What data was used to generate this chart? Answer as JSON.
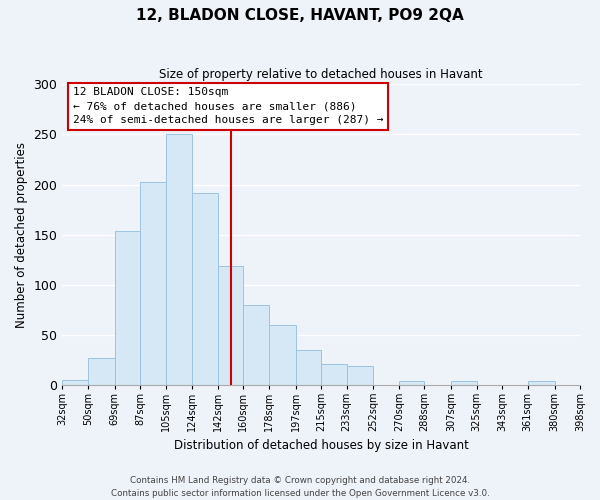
{
  "title": "12, BLADON CLOSE, HAVANT, PO9 2QA",
  "subtitle": "Size of property relative to detached houses in Havant",
  "xlabel": "Distribution of detached houses by size in Havant",
  "ylabel": "Number of detached properties",
  "footer_lines": [
    "Contains HM Land Registry data © Crown copyright and database right 2024.",
    "Contains public sector information licensed under the Open Government Licence v3.0."
  ],
  "bar_left_edges": [
    32,
    50,
    69,
    87,
    105,
    124,
    142,
    160,
    178,
    197,
    215,
    233,
    252,
    270,
    288,
    307,
    325,
    343,
    361,
    380
  ],
  "bar_widths": [
    18,
    19,
    18,
    18,
    19,
    18,
    18,
    18,
    19,
    18,
    18,
    19,
    18,
    18,
    19,
    18,
    18,
    18,
    19,
    18
  ],
  "bar_heights": [
    5,
    27,
    154,
    203,
    250,
    192,
    119,
    80,
    60,
    35,
    21,
    19,
    0,
    4,
    0,
    4,
    0,
    0,
    4,
    0
  ],
  "bar_color": "#d6e8f5",
  "bar_edge_color": "#9cc4e0",
  "bg_color": "#eef2f9",
  "grid_color": "#ffffff",
  "vline_x": 151,
  "vline_color": "#cc0000",
  "annotation_title": "12 BLADON CLOSE: 150sqm",
  "annotation_line1": "← 76% of detached houses are smaller (886)",
  "annotation_line2": "24% of semi-detached houses are larger (287) →",
  "annotation_box_color": "#ffffff",
  "annotation_box_edge": "#cc0000",
  "ylim": [
    0,
    300
  ],
  "yticks": [
    0,
    50,
    100,
    150,
    200,
    250,
    300
  ],
  "tick_labels": [
    "32sqm",
    "50sqm",
    "69sqm",
    "87sqm",
    "105sqm",
    "124sqm",
    "142sqm",
    "160sqm",
    "178sqm",
    "197sqm",
    "215sqm",
    "233sqm",
    "252sqm",
    "270sqm",
    "288sqm",
    "307sqm",
    "325sqm",
    "343sqm",
    "361sqm",
    "380sqm",
    "398sqm"
  ],
  "xlim_min": 32,
  "xlim_max": 398
}
